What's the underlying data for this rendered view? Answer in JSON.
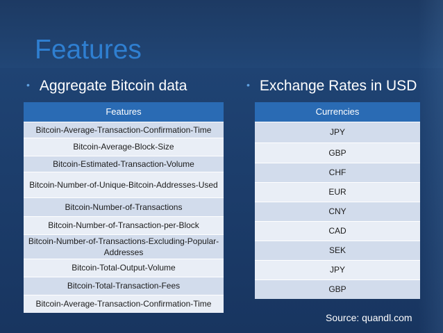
{
  "title": "Features",
  "left_heading": "Aggregate Bitcoin data",
  "right_heading": "Exchange Rates in USD",
  "bullet_glyph": "•",
  "features_table": {
    "header": "Features",
    "rows": [
      "Bitcoin-Average-Transaction-Confirmation-Time",
      "Bitcoin-Average-Block-Size",
      "Bitcoin-Estimated-Transaction-Volume",
      "Bitcoin-Number-of-Unique-Bitcoin-Addresses-Used",
      "Bitcoin-Number-of-Transactions",
      "Bitcoin-Number-of-Transaction-per-Block",
      "Bitcoin-Number-of-Transactions-Excluding-Popular-Addresses",
      "Bitcoin-Total-Output-Volume",
      "Bitcoin-Total-Transaction-Fees",
      "Bitcoin-Average-Transaction-Confirmation-Time"
    ]
  },
  "currencies_table": {
    "header": "Currencies",
    "rows": [
      "JPY",
      "GBP",
      "CHF",
      "EUR",
      "CNY",
      "CAD",
      "SEK",
      "JPY",
      "GBP"
    ]
  },
  "source": "Source: quandl.com",
  "colors": {
    "title": "#2f7fd1",
    "table_header": "#2a6bb4",
    "row_dark": "#d2dcec",
    "row_light": "#e9eef6"
  }
}
